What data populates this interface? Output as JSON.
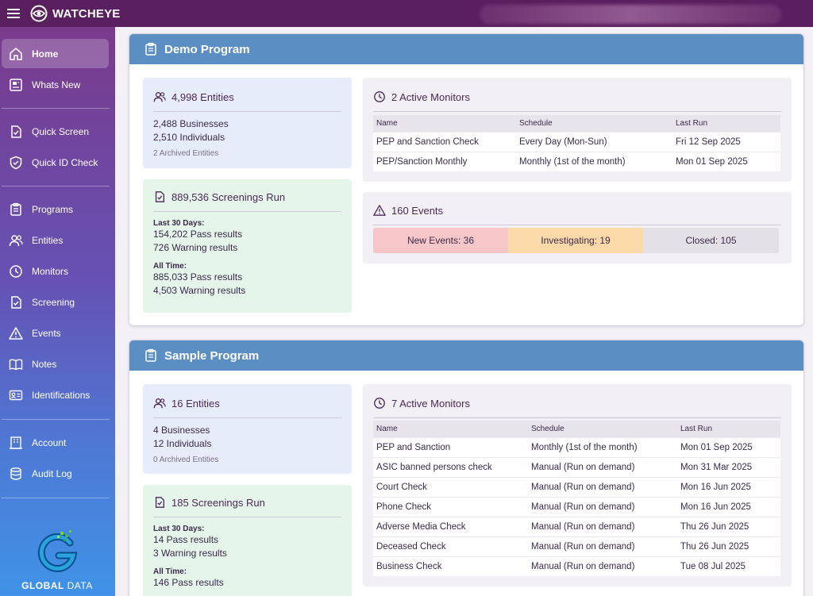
{
  "app": {
    "brand": "WATCHEYE"
  },
  "sidebar": {
    "items": [
      {
        "label": "Home",
        "icon": "home-icon"
      },
      {
        "label": "Whats New",
        "icon": "newspaper-icon"
      },
      {
        "label": "Quick Screen",
        "icon": "check-doc-icon"
      },
      {
        "label": "Quick ID Check",
        "icon": "shield-check-icon"
      },
      {
        "label": "Programs",
        "icon": "clipboard-icon"
      },
      {
        "label": "Entities",
        "icon": "users-icon"
      },
      {
        "label": "Monitors",
        "icon": "clock-icon"
      },
      {
        "label": "Screening",
        "icon": "check-doc-icon"
      },
      {
        "label": "Events",
        "icon": "warning-icon"
      },
      {
        "label": "Notes",
        "icon": "book-icon"
      },
      {
        "label": "Identifications",
        "icon": "id-card-icon"
      },
      {
        "label": "Account",
        "icon": "building-icon"
      },
      {
        "label": "Audit Log",
        "icon": "database-icon"
      }
    ],
    "logo": {
      "name_bold": "GLOBAL",
      "name_light": "DATA"
    }
  },
  "programs": [
    {
      "title": "Demo Program",
      "entities": {
        "title": "4,998 Entities",
        "businesses": "2,488 Businesses",
        "individuals": "2,510 Individuals",
        "archived": "2 Archived Entities"
      },
      "screenings": {
        "title": "889,536 Screenings Run",
        "last30_label": "Last 30 Days:",
        "last30_pass": "154,202 Pass results",
        "last30_warn": "726 Warning results",
        "all_label": "All Time:",
        "all_pass": "885,033 Pass results",
        "all_warn": "4,503 Warning results"
      },
      "monitors": {
        "title": "2 Active Monitors",
        "headers": [
          "Name",
          "Schedule",
          "Last Run"
        ],
        "rows": [
          [
            "PEP and Sanction Check",
            "Every Day (Mon-Sun)",
            "Fri 12 Sep 2025"
          ],
          [
            "PEP/Sanction Monthly",
            "Monthly (1st of the month)",
            "Mon 01 Sep 2025"
          ]
        ]
      },
      "events": {
        "title": "160 Events",
        "new": "New Events: 36",
        "investigating": "Investigating: 19",
        "closed": "Closed: 105"
      }
    },
    {
      "title": "Sample Program",
      "entities": {
        "title": "16 Entities",
        "businesses": "4 Businesses",
        "individuals": "12 Individuals",
        "archived": "0 Archived Entities"
      },
      "screenings": {
        "title": "185 Screenings Run",
        "last30_label": "Last 30 Days:",
        "last30_pass": "14 Pass results",
        "last30_warn": "3 Warning results",
        "all_label": "All Time:",
        "all_pass": "146 Pass results"
      },
      "monitors": {
        "title": "7 Active Monitors",
        "headers": [
          "Name",
          "Schedule",
          "Last Run"
        ],
        "rows": [
          [
            "PEP and Sanction",
            "Monthly (1st of the month)",
            "Mon 01 Sep 2025"
          ],
          [
            "ASIC banned persons check",
            "Manual (Run on demand)",
            "Mon 31 Mar 2025"
          ],
          [
            "Court Check",
            "Manual (Run on demand)",
            "Mon 16 Jun 2025"
          ],
          [
            "Phone Check",
            "Manual (Run on demand)",
            "Mon 16 Jun 2025"
          ],
          [
            "Adverse Media Check",
            "Manual (Run on demand)",
            "Thu 26 Jun 2025"
          ],
          [
            "Deceased Check",
            "Manual (Run on demand)",
            "Thu 26 Jun 2025"
          ],
          [
            "Business Check",
            "Manual (Run on demand)",
            "Tue 08 Jul 2025"
          ]
        ]
      }
    }
  ],
  "colors": {
    "topbar": "#5a1f5e",
    "program_header": "#5b8fc3",
    "entities_card": "#e7ecfb",
    "screenings_card": "#e5f5ea",
    "event_new": "#f6c6c8",
    "event_investigating": "#fbd9a8",
    "event_closed": "#e3e1e6"
  }
}
